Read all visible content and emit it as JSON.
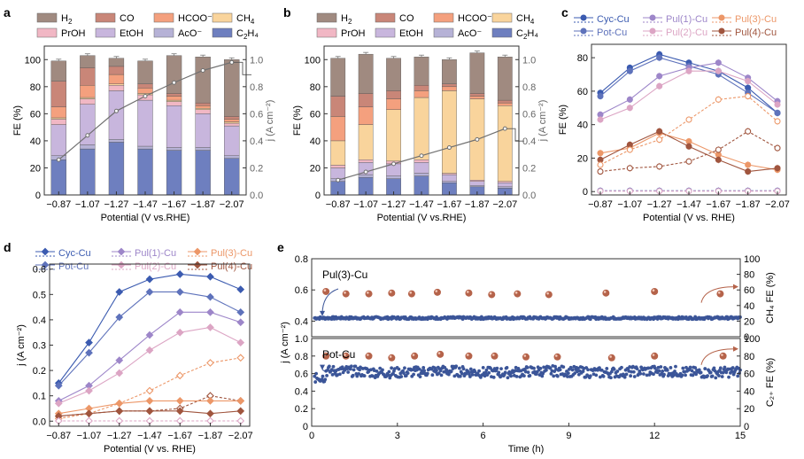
{
  "colors": {
    "H2": "#a08a80",
    "CO": "#c98678",
    "HCOO": "#f4a07e",
    "CH4": "#f9d49c",
    "PrOH": "#f1b7c4",
    "EtOH": "#c8b6dd",
    "AcO": "#b6b2d6",
    "C2H4": "#6e7fbf",
    "cyc": "#3b5bb0",
    "pot": "#5e72bb",
    "pul1": "#9d86c9",
    "pul2": "#dca5c4",
    "pul3": "#ec9768",
    "pul4": "#a0553e",
    "dots": "#3b5598",
    "balls": "#b5634a",
    "jline": "#707070"
  },
  "legend_ab": [
    {
      "key": "H2",
      "pre": "H",
      "sub": "2",
      "post": ""
    },
    {
      "key": "CO",
      "pre": "CO",
      "sub": "",
      "post": ""
    },
    {
      "key": "HCOO",
      "pre": "HCOO",
      "sub": "",
      "post": "⁻"
    },
    {
      "key": "CH4",
      "pre": "CH",
      "sub": "4",
      "post": ""
    },
    {
      "key": "PrOH",
      "pre": "PrOH",
      "sub": "",
      "post": ""
    },
    {
      "key": "EtOH",
      "pre": "EtOH",
      "sub": "",
      "post": ""
    },
    {
      "key": "AcO",
      "pre": "AcO",
      "sub": "",
      "post": "⁻"
    },
    {
      "key": "C2H4",
      "pre": "C",
      "sub": "2",
      "post": "H₄"
    }
  ],
  "legend_cd": [
    {
      "key": "cyc",
      "label": "Cyc-Cu"
    },
    {
      "key": "pul1",
      "label": "Pul(1)-Cu"
    },
    {
      "key": "pul3",
      "label": "Pul(3)-Cu"
    },
    {
      "key": "pot",
      "label": "Pot-Cu"
    },
    {
      "key": "pul2",
      "label": "Pul(2)-Cu"
    },
    {
      "key": "pul4",
      "label": "Pul(4)-Cu"
    }
  ],
  "chart_data": [
    {
      "panel": "a",
      "type": "bar",
      "categories": [
        "−0.87",
        "−1.07",
        "−1.27",
        "−1.47",
        "−1.67",
        "−1.87",
        "−2.07"
      ],
      "xlabel": "Potential (V vs.RHE)",
      "ylabel": "FE (%)",
      "y2label": "j (A cm⁻²)",
      "ylim": [
        0,
        110
      ],
      "y2lim": [
        0,
        1.1
      ],
      "yticks": [
        "0",
        "20",
        "40",
        "60",
        "80",
        "100"
      ],
      "y2ticks": [
        "0.0",
        "0.2",
        "0.4",
        "0.6",
        "0.8",
        "1.0"
      ],
      "stack_order": [
        "C2H4",
        "AcO",
        "EtOH",
        "PrOH",
        "CH4",
        "HCOO",
        "CO",
        "H2"
      ],
      "series": [
        {
          "key": "C2H4",
          "values": [
            26,
            34,
            39,
            34,
            33,
            33,
            27
          ]
        },
        {
          "key": "AcO",
          "values": [
            3,
            3,
            2,
            2,
            2,
            2,
            2
          ]
        },
        {
          "key": "EtOH",
          "values": [
            23,
            30,
            36,
            34,
            31,
            25,
            22
          ]
        },
        {
          "key": "PrOH",
          "values": [
            4,
            4,
            4,
            4,
            3,
            3,
            2
          ]
        },
        {
          "key": "CH4",
          "values": [
            1,
            1,
            1,
            1,
            1,
            1,
            1
          ]
        },
        {
          "key": "HCOO",
          "values": [
            8,
            9,
            7,
            4,
            3,
            2,
            2
          ]
        },
        {
          "key": "CO",
          "values": [
            19,
            13,
            6,
            3,
            2,
            2,
            2
          ]
        },
        {
          "key": "H2",
          "values": [
            15,
            9,
            6,
            17,
            28,
            34,
            42
          ]
        }
      ],
      "j_values": [
        0.26,
        0.44,
        0.62,
        0.73,
        0.83,
        0.92,
        0.98
      ]
    },
    {
      "panel": "b",
      "type": "bar",
      "categories": [
        "−0.87",
        "−1.07",
        "−1.27",
        "−1.47",
        "−1.67",
        "−1.87",
        "−2.07"
      ],
      "xlabel": "Potential (V vs.RHE)",
      "ylabel": "FE (%)",
      "y2label": "j (A cm⁻²)",
      "ylim": [
        0,
        110
      ],
      "y2lim": [
        0,
        1.1
      ],
      "yticks": [
        "0",
        "20",
        "40",
        "60",
        "80",
        "100"
      ],
      "y2ticks": [
        "0.0",
        "0.2",
        "0.4",
        "0.6",
        "0.8",
        "1.0"
      ],
      "stack_order": [
        "C2H4",
        "AcO",
        "EtOH",
        "PrOH",
        "CH4",
        "HCOO",
        "CO",
        "H2"
      ],
      "series": [
        {
          "key": "C2H4",
          "values": [
            10,
            13,
            12,
            14,
            9,
            6,
            5
          ]
        },
        {
          "key": "AcO",
          "values": [
            2,
            2,
            2,
            2,
            1,
            1,
            1
          ]
        },
        {
          "key": "EtOH",
          "values": [
            8,
            9,
            9,
            8,
            5,
            3,
            3
          ]
        },
        {
          "key": "PrOH",
          "values": [
            2,
            2,
            2,
            2,
            1,
            1,
            1
          ]
        },
        {
          "key": "CH4",
          "values": [
            18,
            26,
            38,
            46,
            61,
            60,
            56
          ]
        },
        {
          "key": "HCOO",
          "values": [
            18,
            13,
            8,
            5,
            3,
            2,
            2
          ]
        },
        {
          "key": "CO",
          "values": [
            15,
            10,
            6,
            4,
            2,
            2,
            2
          ]
        },
        {
          "key": "H2",
          "values": [
            28,
            29,
            24,
            21,
            18,
            30,
            32
          ]
        }
      ],
      "j_values": [
        0.11,
        0.17,
        0.23,
        0.29,
        0.35,
        0.41,
        0.49
      ]
    },
    {
      "panel": "c",
      "type": "line",
      "categories": [
        "−0.87",
        "−1.07",
        "−1.27",
        "−1.47",
        "−1.67",
        "−1.87",
        "−2.07"
      ],
      "xlabel": "Potential (V vs. RHE)",
      "ylabel": "FE (%)",
      "ylim": [
        -2,
        88
      ],
      "yticks": [
        "0",
        "20",
        "40",
        "60",
        "80"
      ],
      "series": [
        {
          "key": "cyc",
          "values": [
            59,
            74,
            82,
            77,
            72,
            62,
            47
          ]
        },
        {
          "key": "pot",
          "values": [
            57,
            72,
            80,
            75,
            70,
            59,
            47
          ]
        },
        {
          "key": "pul1",
          "values": [
            46,
            55,
            69,
            74,
            77,
            68,
            54
          ]
        },
        {
          "key": "pul2",
          "values": [
            43,
            50,
            63,
            72,
            72,
            66,
            52
          ]
        },
        {
          "key": "pul3",
          "values": [
            23,
            26,
            35,
            30,
            22,
            16,
            13
          ]
        },
        {
          "key": "pul4",
          "values": [
            19,
            28,
            36,
            27,
            19,
            12,
            14
          ]
        },
        {
          "key": "pul3",
          "values": [
            16,
            25,
            31,
            43,
            55,
            57,
            42
          ],
          "dashed": true
        },
        {
          "key": "pul4",
          "values": [
            12,
            14,
            15,
            18,
            25,
            36,
            26
          ],
          "dashed": true
        },
        {
          "key": "cyc",
          "values": [
            0.5,
            0.5,
            0.5,
            0.5,
            0.5,
            0.5,
            0.5
          ],
          "dashed": true
        },
        {
          "key": "pul2",
          "values": [
            0.3,
            0.3,
            0.3,
            0.3,
            0.3,
            0.3,
            0.3
          ],
          "dashed": true
        }
      ]
    },
    {
      "panel": "d",
      "type": "line",
      "categories": [
        "−0.87",
        "−1.07",
        "−1.27",
        "−1.47",
        "−1.67",
        "−1.87",
        "−2.07"
      ],
      "xlabel": "Potential (V vs. RHE)",
      "ylabel": "j (A cm⁻²)",
      "ylim": [
        -0.02,
        0.62
      ],
      "yticks": [
        "0.0",
        "0.1",
        "0.2",
        "0.3",
        "0.4",
        "0.5",
        "0.6"
      ],
      "series": [
        {
          "key": "cyc",
          "values": [
            0.15,
            0.31,
            0.51,
            0.56,
            0.58,
            0.57,
            0.52
          ]
        },
        {
          "key": "pot",
          "values": [
            0.14,
            0.27,
            0.41,
            0.51,
            0.51,
            0.49,
            0.43
          ]
        },
        {
          "key": "pul1",
          "values": [
            0.08,
            0.14,
            0.24,
            0.34,
            0.43,
            0.43,
            0.39
          ]
        },
        {
          "key": "pul2",
          "values": [
            0.07,
            0.12,
            0.19,
            0.28,
            0.35,
            0.37,
            0.31
          ]
        },
        {
          "key": "pul3",
          "values": [
            0.01,
            0.03,
            0.07,
            0.12,
            0.18,
            0.23,
            0.25
          ],
          "dashed": true
        },
        {
          "key": "pul4",
          "values": [
            0.02,
            0.03,
            0.04,
            0.04,
            0.05,
            0.1,
            0.08
          ],
          "dashed": true
        },
        {
          "key": "pul3",
          "values": [
            0.03,
            0.05,
            0.07,
            0.08,
            0.08,
            0.08,
            0.08
          ]
        },
        {
          "key": "pul4",
          "values": [
            0.02,
            0.03,
            0.04,
            0.04,
            0.04,
            0.03,
            0.04
          ]
        },
        {
          "key": "pul2",
          "values": [
            0.001,
            0.001,
            0.001,
            0.001,
            0.001,
            0.001,
            0.001
          ],
          "dashed": true
        }
      ]
    },
    {
      "panel": "e",
      "type": "scatter",
      "xlabel": "Time (h)",
      "xlim": [
        0,
        15
      ],
      "xticks": [
        "0",
        "3",
        "6",
        "9",
        "12",
        "15"
      ],
      "ylabel": "j (A cm⁻²)",
      "top": {
        "label": "Pul(3)-Cu",
        "ylim": [
          0.3,
          0.8
        ],
        "yticks": [
          "0.4",
          "0.6",
          "0.8"
        ],
        "y2label": "CH₄ FE (%)",
        "y2lim": [
          0,
          100
        ],
        "y2ticks": [
          "0",
          "20",
          "40",
          "60",
          "80",
          "100"
        ],
        "j_level": 0.42,
        "j_noise": 0.008,
        "fe_points": [
          {
            "t": 0.5,
            "fe": 58
          },
          {
            "t": 1.2,
            "fe": 55
          },
          {
            "t": 2.0,
            "fe": 55
          },
          {
            "t": 2.8,
            "fe": 56
          },
          {
            "t": 3.5,
            "fe": 55
          },
          {
            "t": 4.4,
            "fe": 57
          },
          {
            "t": 5.5,
            "fe": 56
          },
          {
            "t": 6.3,
            "fe": 54
          },
          {
            "t": 7.2,
            "fe": 55
          },
          {
            "t": 8.3,
            "fe": 54
          },
          {
            "t": 10.3,
            "fe": 56
          },
          {
            "t": 12.0,
            "fe": 58
          },
          {
            "t": 14.3,
            "fe": 55
          }
        ]
      },
      "bottom": {
        "label": "Pot-Cu",
        "ylim": [
          0,
          1.0
        ],
        "yticks": [
          "0",
          "0.2",
          "0.4",
          "0.6",
          "0.8",
          "1.0"
        ],
        "y2label": "C₂₊ FE (%)",
        "y2lim": [
          0,
          100
        ],
        "y2ticks": [
          "0",
          "20",
          "40",
          "60",
          "80",
          "100"
        ],
        "j_level": 0.62,
        "j_noise": 0.06,
        "fe_points": [
          {
            "t": 0.5,
            "fe": 80
          },
          {
            "t": 1.2,
            "fe": 80
          },
          {
            "t": 2.0,
            "fe": 80
          },
          {
            "t": 2.8,
            "fe": 78
          },
          {
            "t": 3.6,
            "fe": 80
          },
          {
            "t": 4.5,
            "fe": 82
          },
          {
            "t": 5.5,
            "fe": 80
          },
          {
            "t": 6.4,
            "fe": 80
          },
          {
            "t": 7.5,
            "fe": 79
          },
          {
            "t": 8.6,
            "fe": 79
          },
          {
            "t": 10.5,
            "fe": 78
          },
          {
            "t": 12.0,
            "fe": 80
          },
          {
            "t": 14.4,
            "fe": 80
          }
        ]
      }
    }
  ],
  "panel_labels": [
    "a",
    "b",
    "c",
    "d",
    "e"
  ]
}
